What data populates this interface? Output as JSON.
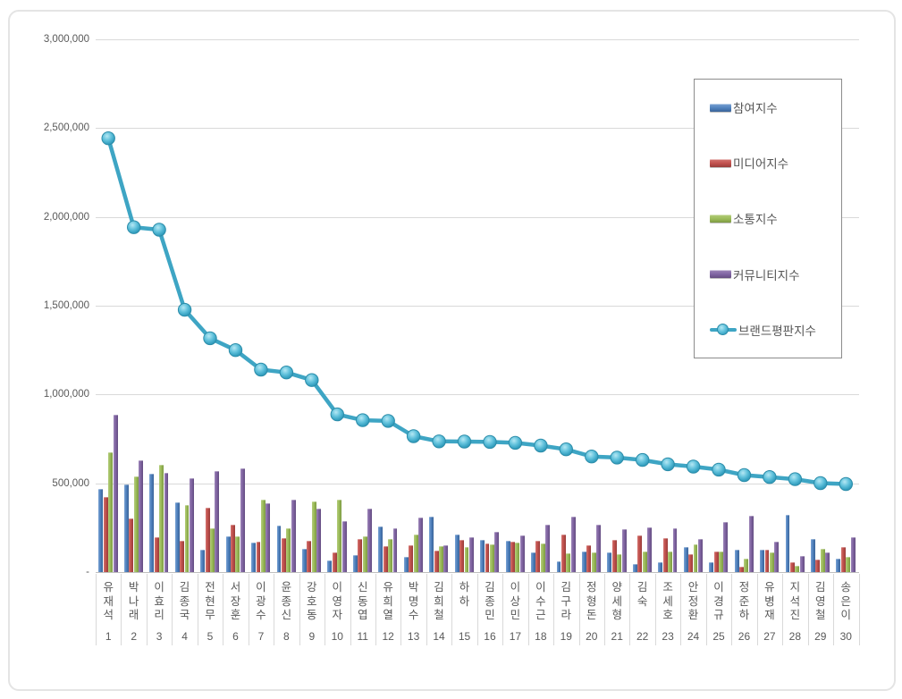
{
  "chart_data": {
    "type": "combo-grouped-bar-with-line",
    "title": "",
    "categories": [
      "유재석",
      "박나래",
      "이효리",
      "김종국",
      "전현무",
      "서장훈",
      "이광수",
      "윤종신",
      "강호동",
      "이영자",
      "신동엽",
      "유희열",
      "박명수",
      "김희철",
      "하하",
      "김종민",
      "이상민",
      "이수근",
      "김구라",
      "정형돈",
      "양세형",
      "김숙",
      "조세호",
      "안정환",
      "이경규",
      "정준하",
      "유병재",
      "지석진",
      "김영철",
      "송은이"
    ],
    "ranks": [
      "1",
      "2",
      "3",
      "4",
      "5",
      "6",
      "7",
      "8",
      "9",
      "10",
      "11",
      "12",
      "13",
      "14",
      "15",
      "16",
      "17",
      "18",
      "19",
      "20",
      "21",
      "22",
      "23",
      "24",
      "25",
      "26",
      "27",
      "28",
      "29",
      "30"
    ],
    "series": [
      {
        "name": "참여지수",
        "type": "bar",
        "color": "#4F81BD",
        "values": [
          470000,
          494000,
          554000,
          394000,
          127000,
          199000,
          164000,
          262000,
          130000,
          64000,
          98000,
          259000,
          85000,
          313000,
          209000,
          180000,
          177000,
          110000,
          58000,
          117000,
          113000,
          43000,
          54000,
          139000,
          54000,
          124000,
          127000,
          320000,
          184000,
          77000
        ]
      },
      {
        "name": "미디어지수",
        "type": "bar",
        "color": "#C0504D",
        "values": [
          421000,
          300000,
          194000,
          174000,
          364000,
          267000,
          169000,
          191000,
          174000,
          110000,
          186000,
          144000,
          149000,
          122000,
          181000,
          162000,
          172000,
          176000,
          212000,
          151000,
          181000,
          206000,
          189000,
          102000,
          115000,
          30000,
          127000,
          57000,
          72000,
          143000
        ]
      },
      {
        "name": "소통지수",
        "type": "bar",
        "color": "#9BBB59",
        "values": [
          673000,
          540000,
          605000,
          380000,
          245000,
          199000,
          406000,
          245000,
          397000,
          409000,
          203000,
          186000,
          211000,
          144000,
          143000,
          158000,
          168000,
          161000,
          105000,
          110000,
          100000,
          118000,
          117000,
          156000,
          118000,
          75000,
          110000,
          37000,
          133000,
          85000
        ]
      },
      {
        "name": "커뮤니티지수",
        "type": "bar",
        "color": "#8064A2",
        "values": [
          884000,
          630000,
          558000,
          529000,
          570000,
          583000,
          386000,
          406000,
          359000,
          288000,
          355000,
          245000,
          308000,
          152000,
          196000,
          228000,
          206000,
          266000,
          310000,
          266000,
          240000,
          252000,
          249000,
          185000,
          284000,
          317000,
          169000,
          91000,
          110000,
          194000
        ]
      },
      {
        "name": "브랜드평판지수",
        "type": "line",
        "color": "#4BACC6",
        "values": [
          2443000,
          1942000,
          1928000,
          1477000,
          1317000,
          1250000,
          1140000,
          1124000,
          1081000,
          888000,
          855000,
          851000,
          765000,
          736000,
          735000,
          733000,
          728000,
          712000,
          691000,
          651000,
          645000,
          631000,
          607000,
          594000,
          577000,
          546000,
          535000,
          523000,
          501000,
          496000
        ]
      }
    ],
    "y_axis": {
      "tick_labels": [
        "3,000,000",
        "2,500,000",
        "2,000,000",
        "1,500,000",
        "1,000,000",
        "500,000",
        "-"
      ],
      "ylim": [
        0,
        3000000
      ],
      "tick_step": 500000
    },
    "grid": true,
    "legend_position": "top-right"
  }
}
